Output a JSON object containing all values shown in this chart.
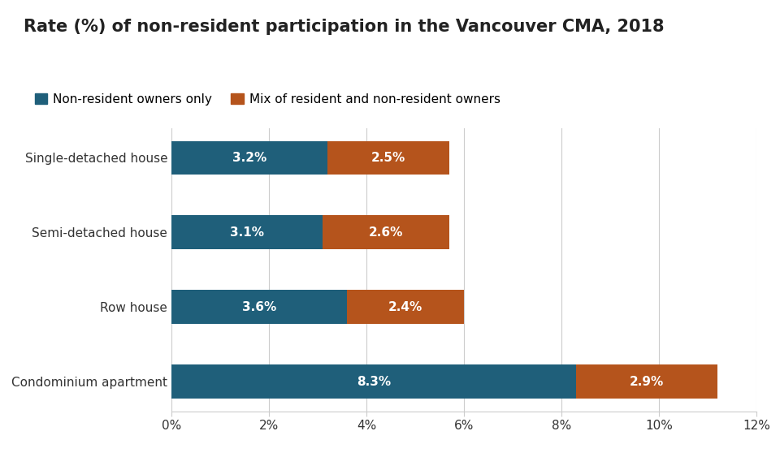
{
  "title": "Rate (%) of non-resident participation in the Vancouver CMA, 2018",
  "categories": [
    "Condominium apartment",
    "Row house",
    "Semi-detached house",
    "Single-detached house"
  ],
  "non_resident_only": [
    8.3,
    3.6,
    3.1,
    3.2
  ],
  "mix_resident": [
    2.9,
    2.4,
    2.6,
    2.5
  ],
  "non_resident_labels": [
    "8.3%",
    "3.6%",
    "3.1%",
    "3.2%"
  ],
  "mix_labels": [
    "2.9%",
    "2.4%",
    "2.6%",
    "2.5%"
  ],
  "color_non_resident": "#1f5f7a",
  "color_mix": "#b5541c",
  "legend_label_1": "Non-resident owners only",
  "legend_label_2": "Mix of resident and non-resident owners",
  "xlim": [
    0,
    12
  ],
  "xticks": [
    0,
    2,
    4,
    6,
    8,
    10,
    12
  ],
  "xtick_labels": [
    "0%",
    "2%",
    "4%",
    "6%",
    "8%",
    "10%",
    "12%"
  ],
  "background_color": "#ffffff",
  "bar_height": 0.45,
  "title_fontsize": 15,
  "label_fontsize": 11,
  "tick_fontsize": 11,
  "legend_fontsize": 11
}
